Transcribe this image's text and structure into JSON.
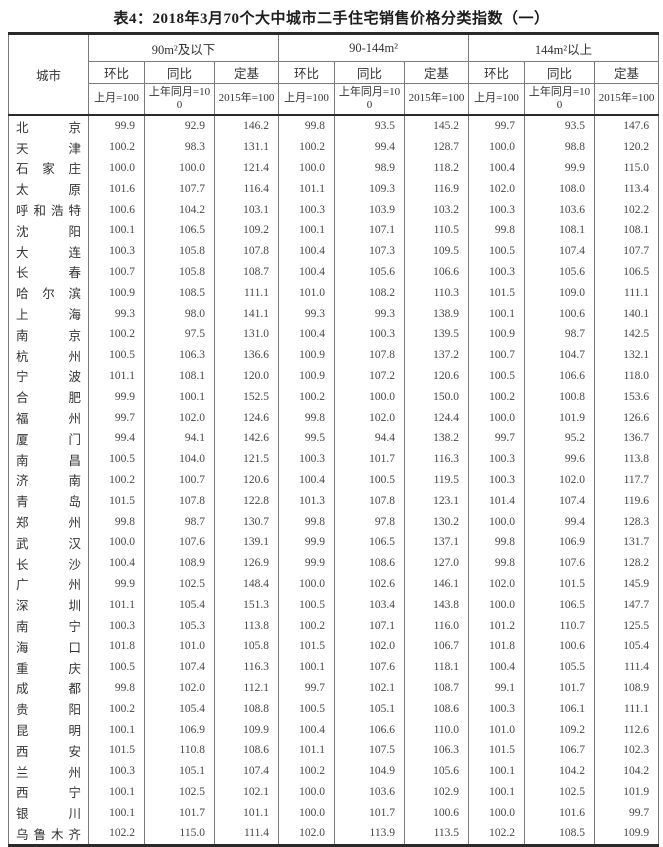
{
  "title": "表4：2018年3月70个大中城市二手住宅销售价格分类指数（一）",
  "colors": {
    "text": "#3d3d3d",
    "border_light": "#7a7a7a",
    "border_heavy": "#2a2a2a"
  },
  "table": {
    "city_header": "城市",
    "groups": [
      {
        "label": "90m²及以下"
      },
      {
        "label": "90-144m²"
      },
      {
        "label": "144m²以上"
      }
    ],
    "sub_headers": [
      "环比",
      "同比",
      "定基"
    ],
    "base_headers": [
      "上月=100",
      "上年同月=100",
      "2015年=100"
    ],
    "rows": [
      {
        "city": "北京",
        "values": [
          "99.9",
          "92.9",
          "146.2",
          "99.8",
          "93.5",
          "145.2",
          "99.7",
          "93.5",
          "147.6"
        ]
      },
      {
        "city": "天津",
        "values": [
          "100.2",
          "98.3",
          "131.1",
          "100.2",
          "99.4",
          "128.7",
          "100.0",
          "98.8",
          "120.2"
        ]
      },
      {
        "city": "石家庄",
        "values": [
          "100.0",
          "100.0",
          "121.4",
          "100.0",
          "98.9",
          "118.2",
          "100.4",
          "99.9",
          "115.0"
        ]
      },
      {
        "city": "太原",
        "values": [
          "101.6",
          "107.7",
          "116.4",
          "101.1",
          "109.3",
          "116.9",
          "102.0",
          "108.0",
          "113.4"
        ]
      },
      {
        "city": "呼和浩特",
        "values": [
          "100.6",
          "104.2",
          "103.1",
          "100.3",
          "103.9",
          "103.2",
          "100.3",
          "103.6",
          "102.2"
        ]
      },
      {
        "city": "沈阳",
        "values": [
          "100.1",
          "106.5",
          "109.2",
          "100.1",
          "107.1",
          "110.5",
          "99.8",
          "108.1",
          "108.1"
        ]
      },
      {
        "city": "大连",
        "values": [
          "100.3",
          "105.8",
          "107.8",
          "100.4",
          "107.3",
          "109.5",
          "100.5",
          "107.4",
          "107.7"
        ]
      },
      {
        "city": "长春",
        "values": [
          "100.7",
          "105.8",
          "108.7",
          "100.4",
          "105.6",
          "106.6",
          "100.3",
          "105.6",
          "106.5"
        ]
      },
      {
        "city": "哈尔滨",
        "values": [
          "100.9",
          "108.5",
          "111.1",
          "101.0",
          "108.2",
          "110.3",
          "101.5",
          "109.0",
          "111.1"
        ]
      },
      {
        "city": "上海",
        "values": [
          "99.3",
          "98.0",
          "141.1",
          "99.3",
          "99.3",
          "138.9",
          "100.1",
          "100.6",
          "140.1"
        ]
      },
      {
        "city": "南京",
        "values": [
          "100.2",
          "97.5",
          "131.0",
          "100.4",
          "100.3",
          "139.5",
          "100.9",
          "98.7",
          "142.5"
        ]
      },
      {
        "city": "杭州",
        "values": [
          "100.5",
          "106.3",
          "136.6",
          "100.9",
          "107.8",
          "137.2",
          "100.7",
          "104.7",
          "132.1"
        ]
      },
      {
        "city": "宁波",
        "values": [
          "101.1",
          "108.1",
          "120.0",
          "100.9",
          "107.2",
          "120.6",
          "100.5",
          "106.6",
          "118.0"
        ]
      },
      {
        "city": "合肥",
        "values": [
          "99.9",
          "100.1",
          "152.5",
          "100.2",
          "100.0",
          "150.0",
          "100.2",
          "100.8",
          "153.6"
        ]
      },
      {
        "city": "福州",
        "values": [
          "99.7",
          "102.0",
          "124.6",
          "99.8",
          "102.0",
          "124.4",
          "100.0",
          "101.9",
          "126.6"
        ]
      },
      {
        "city": "厦门",
        "values": [
          "99.4",
          "94.1",
          "142.6",
          "99.5",
          "94.4",
          "138.2",
          "99.7",
          "95.2",
          "136.7"
        ]
      },
      {
        "city": "南昌",
        "values": [
          "100.5",
          "104.0",
          "121.5",
          "100.3",
          "101.7",
          "116.3",
          "100.3",
          "99.6",
          "113.8"
        ]
      },
      {
        "city": "济南",
        "values": [
          "100.2",
          "100.7",
          "120.6",
          "100.4",
          "100.5",
          "119.5",
          "100.3",
          "102.0",
          "117.7"
        ]
      },
      {
        "city": "青岛",
        "values": [
          "101.5",
          "107.8",
          "122.8",
          "101.3",
          "107.8",
          "123.1",
          "101.4",
          "107.4",
          "119.6"
        ]
      },
      {
        "city": "郑州",
        "values": [
          "99.8",
          "98.7",
          "130.7",
          "99.8",
          "97.8",
          "130.2",
          "100.0",
          "99.4",
          "128.3"
        ]
      },
      {
        "city": "武汉",
        "values": [
          "100.0",
          "107.6",
          "139.1",
          "99.9",
          "106.5",
          "137.1",
          "99.8",
          "106.9",
          "131.7"
        ]
      },
      {
        "city": "长沙",
        "values": [
          "100.4",
          "108.9",
          "126.9",
          "99.9",
          "108.6",
          "127.0",
          "99.8",
          "107.6",
          "128.2"
        ]
      },
      {
        "city": "广州",
        "values": [
          "99.9",
          "102.5",
          "148.4",
          "100.0",
          "102.6",
          "146.1",
          "102.0",
          "101.5",
          "145.9"
        ]
      },
      {
        "city": "深圳",
        "values": [
          "101.1",
          "105.4",
          "151.3",
          "100.5",
          "103.4",
          "143.8",
          "100.0",
          "106.5",
          "147.7"
        ]
      },
      {
        "city": "南宁",
        "values": [
          "100.3",
          "105.3",
          "113.8",
          "100.2",
          "107.1",
          "116.0",
          "101.2",
          "110.7",
          "125.5"
        ]
      },
      {
        "city": "海口",
        "values": [
          "101.8",
          "101.0",
          "105.8",
          "101.5",
          "102.0",
          "106.7",
          "101.8",
          "100.6",
          "105.4"
        ]
      },
      {
        "city": "重庆",
        "values": [
          "100.5",
          "107.4",
          "116.3",
          "100.1",
          "107.6",
          "118.1",
          "100.4",
          "105.5",
          "111.4"
        ]
      },
      {
        "city": "成都",
        "values": [
          "99.8",
          "102.0",
          "112.1",
          "99.7",
          "102.1",
          "108.7",
          "99.1",
          "101.7",
          "108.9"
        ]
      },
      {
        "city": "贵阳",
        "values": [
          "100.2",
          "105.4",
          "108.8",
          "100.5",
          "105.1",
          "108.6",
          "100.3",
          "106.1",
          "111.1"
        ]
      },
      {
        "city": "昆明",
        "values": [
          "100.1",
          "106.9",
          "109.9",
          "100.4",
          "106.6",
          "110.0",
          "101.0",
          "109.2",
          "112.6"
        ]
      },
      {
        "city": "西安",
        "values": [
          "101.5",
          "110.8",
          "108.6",
          "101.1",
          "107.5",
          "106.3",
          "101.5",
          "106.7",
          "102.3"
        ]
      },
      {
        "city": "兰州",
        "values": [
          "100.3",
          "105.1",
          "107.4",
          "100.2",
          "104.9",
          "105.6",
          "100.1",
          "104.2",
          "104.2"
        ]
      },
      {
        "city": "西宁",
        "values": [
          "100.1",
          "102.5",
          "102.1",
          "100.0",
          "103.6",
          "102.9",
          "100.1",
          "102.5",
          "101.9"
        ]
      },
      {
        "city": "银川",
        "values": [
          "100.1",
          "101.7",
          "101.1",
          "100.0",
          "101.7",
          "100.6",
          "100.0",
          "101.6",
          "99.7"
        ]
      },
      {
        "city": "乌鲁木齐",
        "values": [
          "102.2",
          "115.0",
          "111.4",
          "102.0",
          "113.9",
          "113.5",
          "102.2",
          "108.5",
          "109.9"
        ]
      }
    ]
  }
}
